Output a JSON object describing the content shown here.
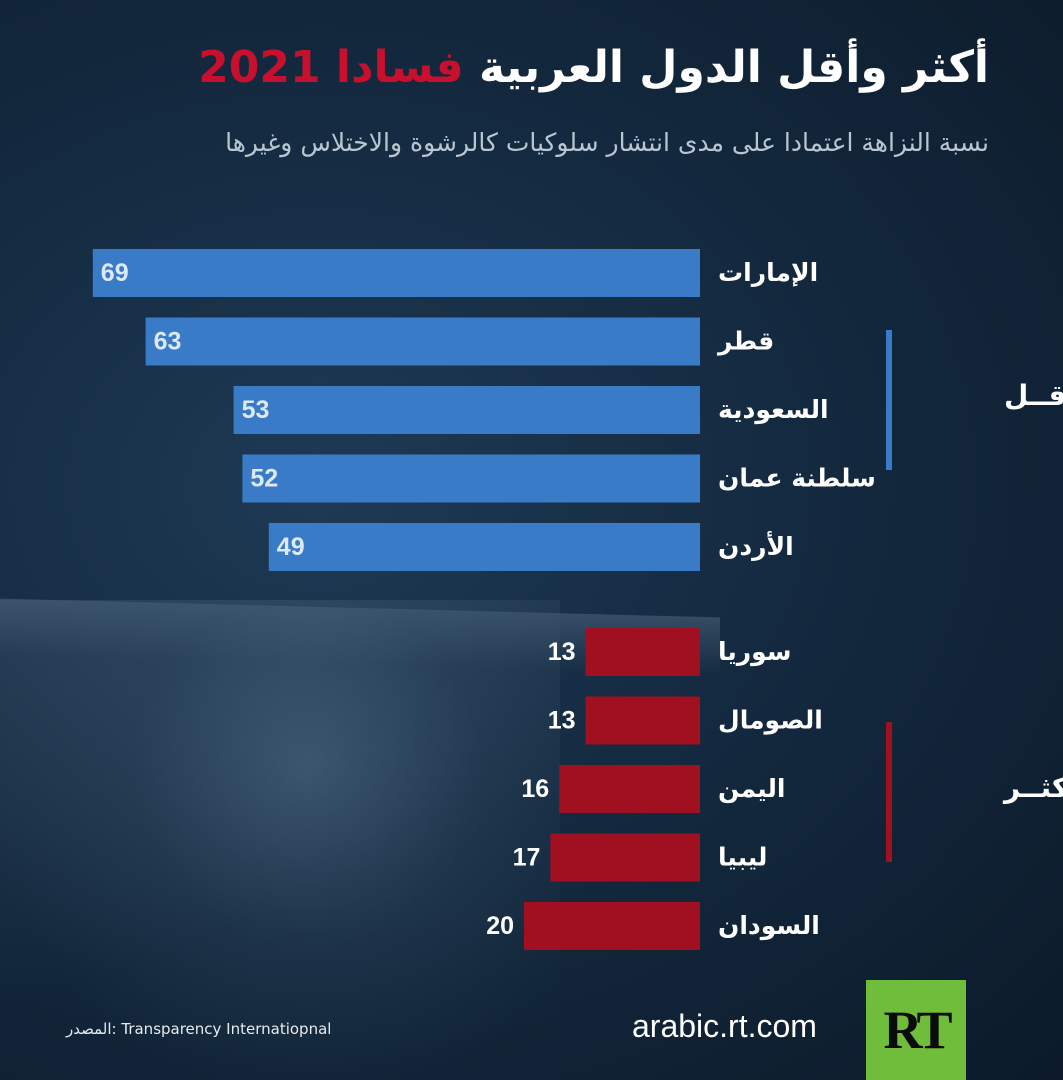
{
  "header": {
    "title_main": "أكثر وأقل الدول العربية ",
    "title_highlight": "فسادا 2021",
    "subtitle": "نسبة النزاهة اعتمادا على مدى انتشار سلوكيات كالرشوة والاختلاس وغيرها"
  },
  "colors": {
    "least_bar": "#3a7bc8",
    "most_bar": "#a01020",
    "accent_red": "#c8102e",
    "logo_green": "#6fbd3a"
  },
  "chart_data": {
    "type": "bar",
    "orientation": "horizontal",
    "title": "أكثر وأقل الدول العربية فسادا 2021",
    "subtitle": "نسبة النزاهة اعتمادا على مدى انتشار سلوكيات كالرشوة والاختلاس وغيرها",
    "groups": [
      {
        "name": "الأقــل",
        "color": "#3a7bc8",
        "categories": [
          "الإمارات",
          "قطر",
          "السعودية",
          "سلطنة عمان",
          "الأردن"
        ],
        "values": [
          69,
          63,
          53,
          52,
          49
        ]
      },
      {
        "name": "الأكثــر",
        "color": "#a01020",
        "categories": [
          "سوريا",
          "الصومال",
          "اليمن",
          "ليبيا",
          "السودان"
        ],
        "values": [
          13,
          13,
          16,
          17,
          20
        ]
      }
    ]
  },
  "footer": {
    "source": "المصدر: Transparency Internatiopnal",
    "site": "arabic.rt.com",
    "logo": "RT"
  }
}
